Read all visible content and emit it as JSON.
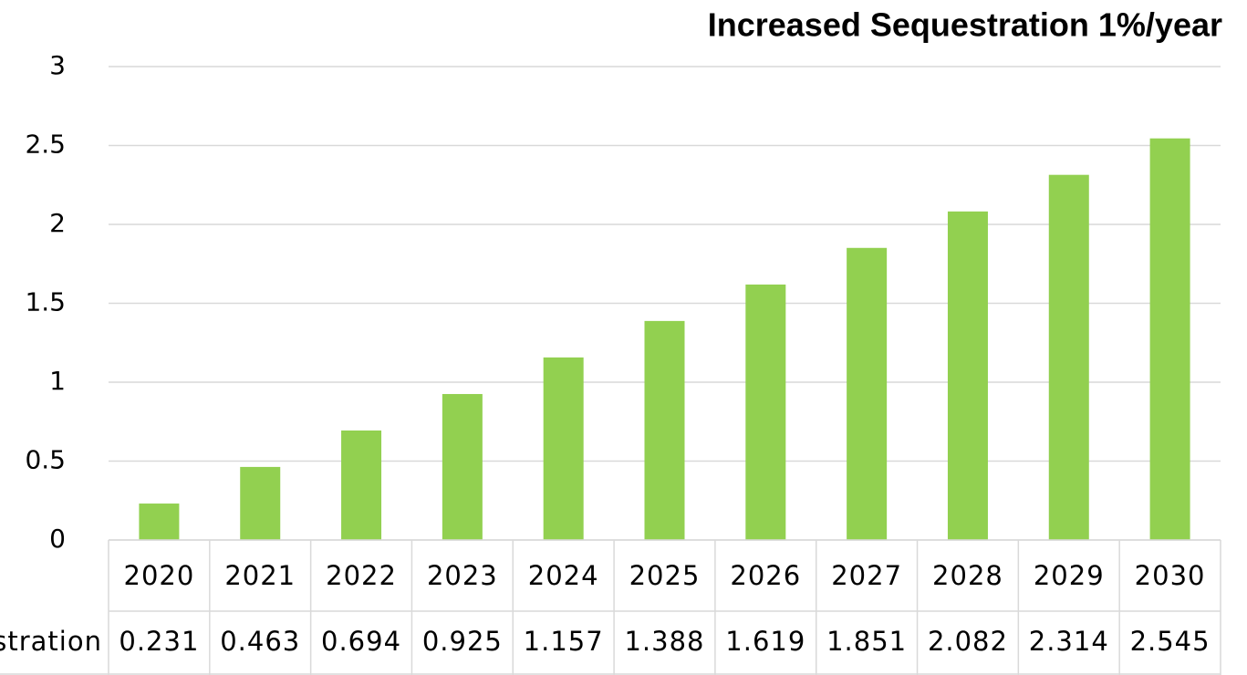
{
  "chart_data": {
    "type": "bar",
    "title": "Increased Sequestration 1%/year",
    "categories": [
      "2020",
      "2021",
      "2022",
      "2023",
      "2024",
      "2025",
      "2026",
      "2027",
      "2028",
      "2029",
      "2030"
    ],
    "series": [
      {
        "name": "Increased Sequestration",
        "color": "#92d050",
        "values": [
          0.231,
          0.463,
          0.694,
          0.925,
          1.157,
          1.388,
          1.619,
          1.851,
          2.082,
          2.314,
          2.545
        ]
      }
    ],
    "ylim": [
      0,
      3
    ],
    "yticks": [
      0,
      0.5,
      1,
      1.5,
      2,
      2.5,
      3
    ],
    "grid": true
  }
}
